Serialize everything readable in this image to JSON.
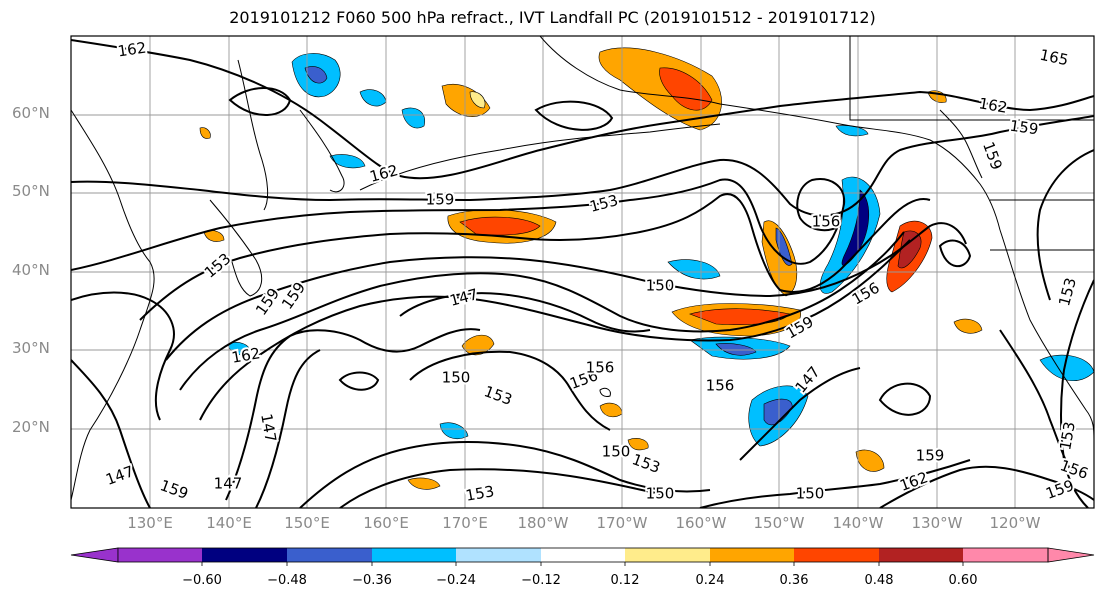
{
  "title": "2019101212 F060 500 hPa refract., IVT Landfall PC (2019101512 - 2019101712)",
  "lat_labels": [
    "60°N",
    "50°N",
    "40°N",
    "30°N",
    "20°N"
  ],
  "lon_labels": [
    "130°E",
    "140°E",
    "150°E",
    "160°E",
    "170°E",
    "180°W",
    "170°W",
    "160°W",
    "150°W",
    "140°W",
    "130°W",
    "120°W"
  ],
  "contour_labels": [
    "162",
    "165",
    "162",
    "159",
    "159",
    "162",
    "159",
    "153",
    "156",
    "153",
    "159",
    "156",
    "147",
    "150",
    "153",
    "159",
    "162",
    "156",
    "150",
    "153",
    "156",
    "159",
    "147",
    "147",
    "147",
    "150",
    "153",
    "150",
    "147",
    "159",
    "159",
    "162",
    "150",
    "156",
    "153",
    "159",
    "153",
    "156"
  ],
  "colorbar": {
    "ticks": [
      "−0.60",
      "−0.48",
      "−0.36",
      "−0.24",
      "−0.12",
      "0.12",
      "0.24",
      "0.36",
      "0.48",
      "0.60"
    ],
    "colors": [
      "#9932cc",
      "#000080",
      "#3a5fcd",
      "#00bfff",
      "#b0e2ff",
      "#ffffff",
      "#ffec8b",
      "#ffa500",
      "#ff4500",
      "#b22222",
      "#ff88aa"
    ]
  }
}
